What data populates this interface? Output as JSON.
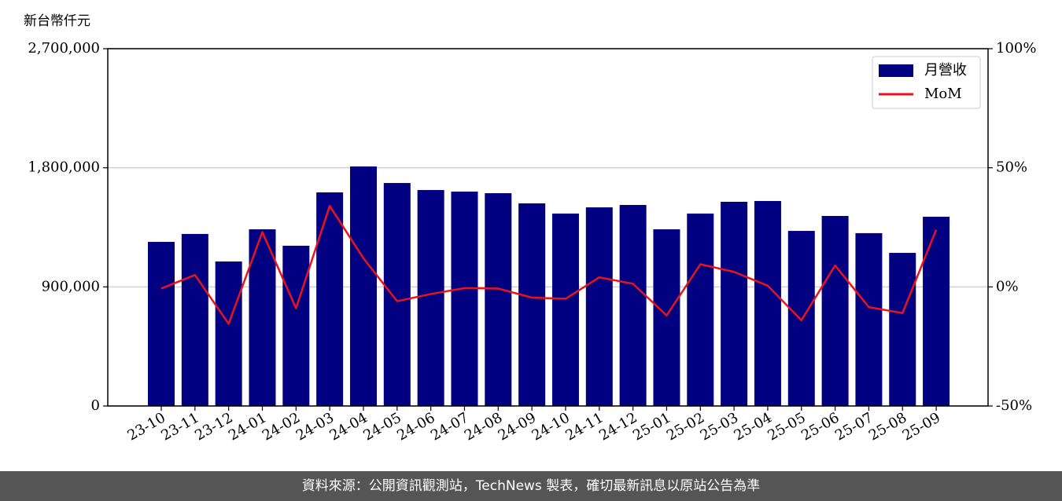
{
  "chart_data": {
    "type": "bar_line",
    "ylabel": "新台幣仟元",
    "categories": [
      "23-10",
      "23-11",
      "23-12",
      "24-01",
      "24-02",
      "24-03",
      "24-04",
      "24-05",
      "24-06",
      "24-07",
      "24-08",
      "24-09",
      "24-10",
      "24-11",
      "24-12",
      "25-01",
      "25-02",
      "25-03",
      "25-04",
      "25-05",
      "25-06",
      "25-07",
      "25-08",
      "25-09"
    ],
    "series": [
      {
        "name": "月營收",
        "color": "#000080",
        "kind": "bar",
        "values": [
          1240000,
          1300000,
          1092000,
          1335000,
          1211000,
          1614000,
          1810000,
          1685000,
          1632000,
          1620000,
          1608000,
          1531000,
          1454000,
          1501000,
          1519000,
          1335000,
          1454000,
          1543000,
          1549000,
          1323000,
          1436000,
          1306000,
          1157000,
          1430000
        ]
      },
      {
        "name": "MoM",
        "color": "#e8141c",
        "kind": "line",
        "axis": "y2",
        "values": [
          -0.7,
          5,
          -15.5,
          23,
          -9,
          34,
          12,
          -6,
          -3,
          -0.5,
          -0.7,
          -4.5,
          -5,
          4,
          1.3,
          -12,
          9.5,
          6.3,
          0.5,
          -14,
          9,
          -8.5,
          -11,
          24
        ]
      }
    ],
    "ylim": [
      0,
      2700000
    ],
    "yticks": [
      0,
      {
        "value": 900000,
        "label": "900,000"
      },
      {
        "value": 1800000,
        "label": "1,800,000"
      },
      {
        "value": 2700000,
        "label": "2,700,000"
      }
    ],
    "y2lim": [
      -50,
      100
    ],
    "y2ticks": [
      {
        "value": -50,
        "label": "-50%"
      },
      {
        "value": 0,
        "label": "0%"
      },
      {
        "value": 50,
        "label": "50%"
      },
      {
        "value": 100,
        "label": "100%"
      }
    ],
    "grid": true,
    "legend": "upper right",
    "footer": "資料來源：公開資訊觀測站，TechNews 製表，確切最新訊息以原站公告為準"
  }
}
